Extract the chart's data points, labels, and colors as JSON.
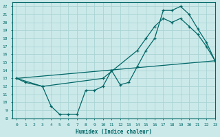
{
  "xlabel": "Humidex (Indice chaleur)",
  "bg_color": "#cce9e9",
  "grid_color": "#aad4d4",
  "line_color": "#006666",
  "xlim": [
    -0.5,
    23
  ],
  "ylim": [
    8,
    22.5
  ],
  "yticks": [
    8,
    9,
    10,
    11,
    12,
    13,
    14,
    15,
    16,
    17,
    18,
    19,
    20,
    21,
    22
  ],
  "xticks": [
    0,
    1,
    2,
    3,
    4,
    5,
    6,
    7,
    8,
    9,
    10,
    11,
    12,
    13,
    14,
    15,
    16,
    17,
    18,
    19,
    20,
    21,
    22,
    23
  ],
  "line1_x": [
    0,
    1,
    3,
    4,
    5,
    6,
    7,
    8,
    9,
    10,
    11,
    12,
    13,
    14,
    15,
    16,
    17,
    18,
    19,
    20,
    21,
    22,
    23
  ],
  "line1_y": [
    13,
    12.5,
    12,
    9.5,
    8.5,
    8.5,
    8.5,
    11.5,
    11.5,
    12,
    14,
    12.2,
    12.5,
    14.5,
    16.5,
    18,
    21.5,
    21.5,
    22,
    21,
    19.2,
    17.5,
    15.2
  ],
  "line2_x": [
    0,
    3,
    10,
    14,
    15,
    16,
    17,
    18,
    19,
    20,
    21,
    22,
    23
  ],
  "line2_y": [
    13,
    12,
    13,
    16.5,
    18,
    19.5,
    20.5,
    20,
    20.5,
    19.5,
    18.5,
    17,
    15.2
  ],
  "line3_x": [
    0,
    23
  ],
  "line3_y": [
    13,
    15.2
  ]
}
